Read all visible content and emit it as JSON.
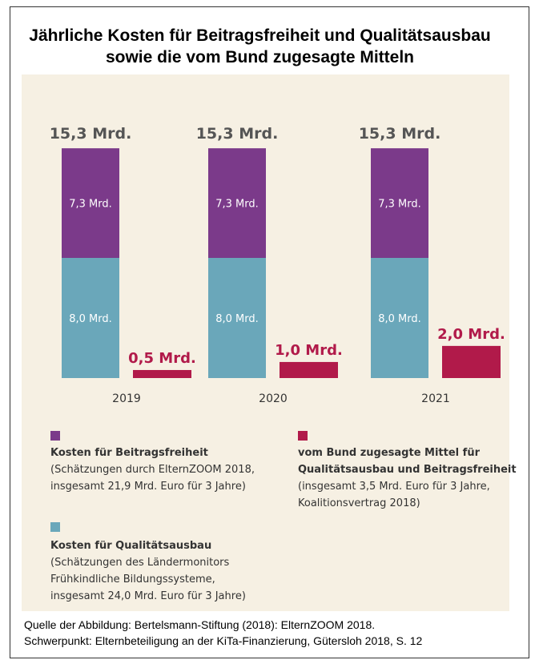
{
  "title_line1": "Jährliche Kosten für Beitragsfreiheit und Qualitätsausbau",
  "title_line2": "sowie die vom Bund zugesagte Mitteln",
  "colors": {
    "beitragsfreiheit": "#7b3a8a",
    "qualitaetsausbau": "#6aa7ba",
    "bund": "#b11a4a",
    "panel": "#f6f0e3",
    "total_label": "#555555"
  },
  "chart_data": {
    "type": "bar",
    "categories": [
      "2019",
      "2020",
      "2021"
    ],
    "stacked_costs": {
      "qualitaetsausbau": [
        8.0,
        8.0,
        8.0
      ],
      "beitragsfreiheit": [
        7.3,
        7.3,
        7.3
      ],
      "totals": [
        15.3,
        15.3,
        15.3
      ]
    },
    "bund_mittel": [
      0.5,
      1.0,
      2.0
    ],
    "labels": {
      "total": [
        "15,3 Mrd.",
        "15,3 Mrd.",
        "15,3 Mrd."
      ],
      "beitragsfreiheit": [
        "7,3 Mrd.",
        "7,3 Mrd.",
        "7,3 Mrd."
      ],
      "qualitaetsausbau": [
        "8,0 Mrd.",
        "8,0 Mrd.",
        "8,0 Mrd."
      ],
      "bund": [
        "0,5 Mrd.",
        "1,0 Mrd.",
        "2,0 Mrd."
      ]
    },
    "ylim": [
      0,
      16
    ],
    "grid": false
  },
  "legend": {
    "beitragsfreiheit": {
      "title": "Kosten für Beitragsfreiheit",
      "line1": "(Schätzungen durch ElternZOOM 2018,",
      "line2": "insgesamt 21,9 Mrd. Euro für 3 Jahre)"
    },
    "qualitaetsausbau": {
      "title": "Kosten für Qualitätsausbau",
      "line1": "(Schätzungen des Ländermonitors",
      "line2": "Frühkindliche Bildungssysteme,",
      "line3": "insgesamt 24,0 Mrd. Euro für 3 Jahre)"
    },
    "bund": {
      "title1": "vom Bund zugesagte Mittel für",
      "title2": "Qualitätsausbau und Beitragsfreiheit",
      "line1": "(insgesamt 3,5 Mrd. Euro für 3 Jahre,",
      "line2": "Koalitionsvertrag 2018)"
    }
  },
  "source": {
    "line1": "Quelle der Abbildung: Bertelsmann-Stiftung (2018): ElternZOOM 2018.",
    "line2": "Schwerpunkt: Elternbeteiligung an der KiTa-Finanzierung, Gütersloh 2018, S. 12"
  }
}
